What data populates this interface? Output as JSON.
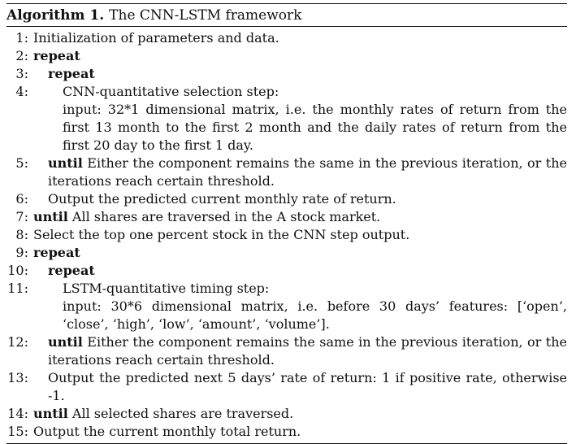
{
  "algorithm": {
    "label": "Algorithm 1.",
    "title": "The CNN-LSTM framework",
    "lines": [
      {
        "num": "1:",
        "indent": 0,
        "keyword": "",
        "text": "Initialization of parameters and data."
      },
      {
        "num": "2:",
        "indent": 0,
        "keyword": "repeat",
        "text": ""
      },
      {
        "num": "3:",
        "indent": 1,
        "keyword": "repeat",
        "text": ""
      },
      {
        "num": "4:",
        "indent": 2,
        "keyword": "",
        "text": "CNN-quantitative selection step:",
        "extra": [
          "input: 32*1 dimensional matrix, i.e. the monthly rates of return from the first 13 month to the first 2 month and the daily rates of return from the first 20 day to the first 1 day."
        ]
      },
      {
        "num": "5:",
        "indent": 1,
        "keyword": "until",
        "text": "Either the component remains the same in the previous iteration, or the iterations reach certain threshold."
      },
      {
        "num": "6:",
        "indent": 1,
        "keyword": "",
        "text": "Output the predicted current monthly rate of return."
      },
      {
        "num": "7:",
        "indent": 0,
        "keyword": "until",
        "text": "All shares are traversed in the A stock market."
      },
      {
        "num": "8:",
        "indent": 0,
        "keyword": "",
        "text": "Select the top one percent stock in the CNN step output."
      },
      {
        "num": "9:",
        "indent": 0,
        "keyword": "repeat",
        "text": ""
      },
      {
        "num": "10:",
        "indent": 1,
        "keyword": "repeat",
        "text": ""
      },
      {
        "num": "11:",
        "indent": 2,
        "keyword": "",
        "text": "LSTM-quantitative timing step:",
        "extra": [
          "input: 30*6 dimensional matrix, i.e. before 30 days’ features: [‘open’, ‘close’, ‘high’, ‘low’, ‘amount’, ‘volume’]."
        ]
      },
      {
        "num": "12:",
        "indent": 1,
        "keyword": "until",
        "text": "Either the component remains the same in the previous iteration, or the iterations reach certain threshold."
      },
      {
        "num": "13:",
        "indent": 1,
        "keyword": "",
        "text": "Output the predicted next 5 days’ rate of return: 1 if positive rate, otherwise -1."
      },
      {
        "num": "14:",
        "indent": 0,
        "keyword": "until",
        "text": "All selected shares are traversed."
      },
      {
        "num": "15:",
        "indent": 0,
        "keyword": "",
        "text": "Output the current monthly total return."
      }
    ]
  }
}
